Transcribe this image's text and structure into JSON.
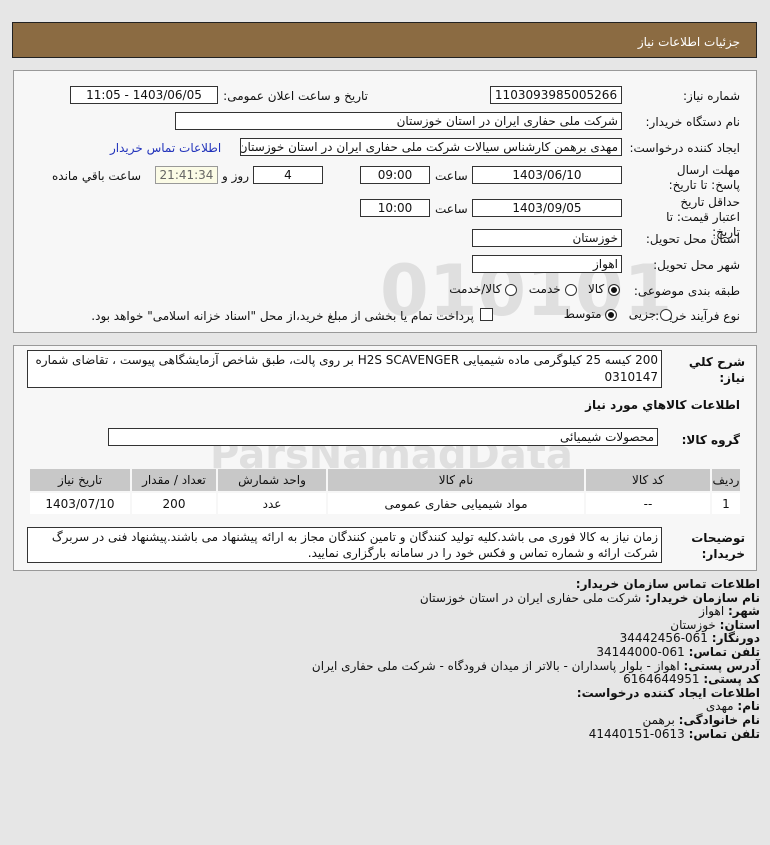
{
  "header": {
    "title": "جزئیات اطلاعات نیاز"
  },
  "watermark": "ParsNamadData",
  "form": {
    "need_number_label": "شماره نیاز:",
    "need_number": "1103093985005266",
    "announce_label": "تاریخ و ساعت اعلان عمومی:",
    "announce_value": "1403/06/05 - 11:05",
    "buyer_label": "نام دستگاه خریدار:",
    "buyer_value": "شرکت ملی حفاری ایران در استان خوزستان",
    "creator_label": "ایجاد کننده درخواست:",
    "creator_value": "مهدی برهمن کارشناس سیالات شرکت ملی حفاری ایران در استان خوزستان",
    "contact_link": "اطلاعات تماس خریدار",
    "deadline_label": "مهلت ارسال پاسخ: تا تاریخ:",
    "deadline_date": "1403/06/10",
    "time_label": "ساعت",
    "deadline_time": "09:00",
    "days": "4",
    "days_label": "روز و",
    "remaining": "21:41:34",
    "remaining_label": "ساعت باقي مانده",
    "validity_label": "حداقل تاریخ اعتبار قیمت: تا تاریخ:",
    "validity_date": "1403/09/05",
    "validity_time": "10:00",
    "province_label": "استان محل تحویل:",
    "province_value": "خوزستان",
    "city_label": "شهر محل تحویل:",
    "city_value": "اهواز",
    "category_label": "طبقه بندی موضوعی:",
    "category_options": [
      "کالا",
      "خدمت",
      "کالا/خدمت"
    ],
    "category_selected": "کالا",
    "process_label": "نوع فرآیند خرید :",
    "process_options": [
      "جزیی",
      "متوسط"
    ],
    "process_selected": "متوسط",
    "payment_text": "پرداخت تمام یا بخشی از مبلغ خرید،از محل \"اسناد خزانه اسلامی\" خواهد بود.",
    "payment_checked": false
  },
  "details": {
    "desc_label": "شرح كلي نياز:",
    "desc_value": "200 کیسه 25 کیلوگرمی ماده شیمیایی H2S SCAVENGER بر روی پالت، طبق شاخص آزمایشگاهی پیوست ، تقاضای شماره 0310147",
    "goods_title": "اطلاعات كالاهاي مورد نياز",
    "group_label": "گروه کالا:",
    "group_value": "محصولات شیمیائی",
    "table": {
      "headers": [
        "ردیف",
        "کد کالا",
        "نام کالا",
        "واحد شمارش",
        "تعداد / مقدار",
        "تاریخ نیاز"
      ],
      "rows": [
        [
          "1",
          "--",
          "مواد شیمیایی حفاری عمومی",
          "عدد",
          "200",
          "1403/07/10"
        ]
      ]
    },
    "notes_label": "توضیحات خریدار:",
    "notes_value": "زمان نیاز به کالا فوری می باشد.کلیه تولید کنندگان و تامین کنندگان مجاز به ارائه پیشنهاد می باشند.پیشنهاد فنی در سربرگ شرکت ارائه و شماره تماس و فکس خود را در سامانه بارگزاری نمایید."
  },
  "contact": {
    "title": "اطلاعات تماس سازمان خریدار:",
    "org_label": "نام سازمان خریدار:",
    "org": "شرکت ملی حفاری ایران در استان خوزستان",
    "city_label": "شهر:",
    "city": "اهواز",
    "province_label": "استان:",
    "province": "خوزستان",
    "fax_label": "دورنگار:",
    "fax": "061-34442456",
    "phone_label": "تلفن تماس:",
    "phone": "061-34144000",
    "address_label": "آدرس پستی:",
    "address": "اهواز - بلوار پاسداران - بالاتر از میدان فرودگاه - شرکت ملی حفاری ایران",
    "postal_label": "کد پستی:",
    "postal": "6164644951",
    "creator_title": "اطلاعات ایجاد کننده درخواست:",
    "name_label": "نام:",
    "name": "مهدی",
    "family_label": "نام خانوادگی:",
    "family": "برهمن",
    "cphone_label": "تلفن تماس:",
    "cphone": "0613-41440151"
  }
}
